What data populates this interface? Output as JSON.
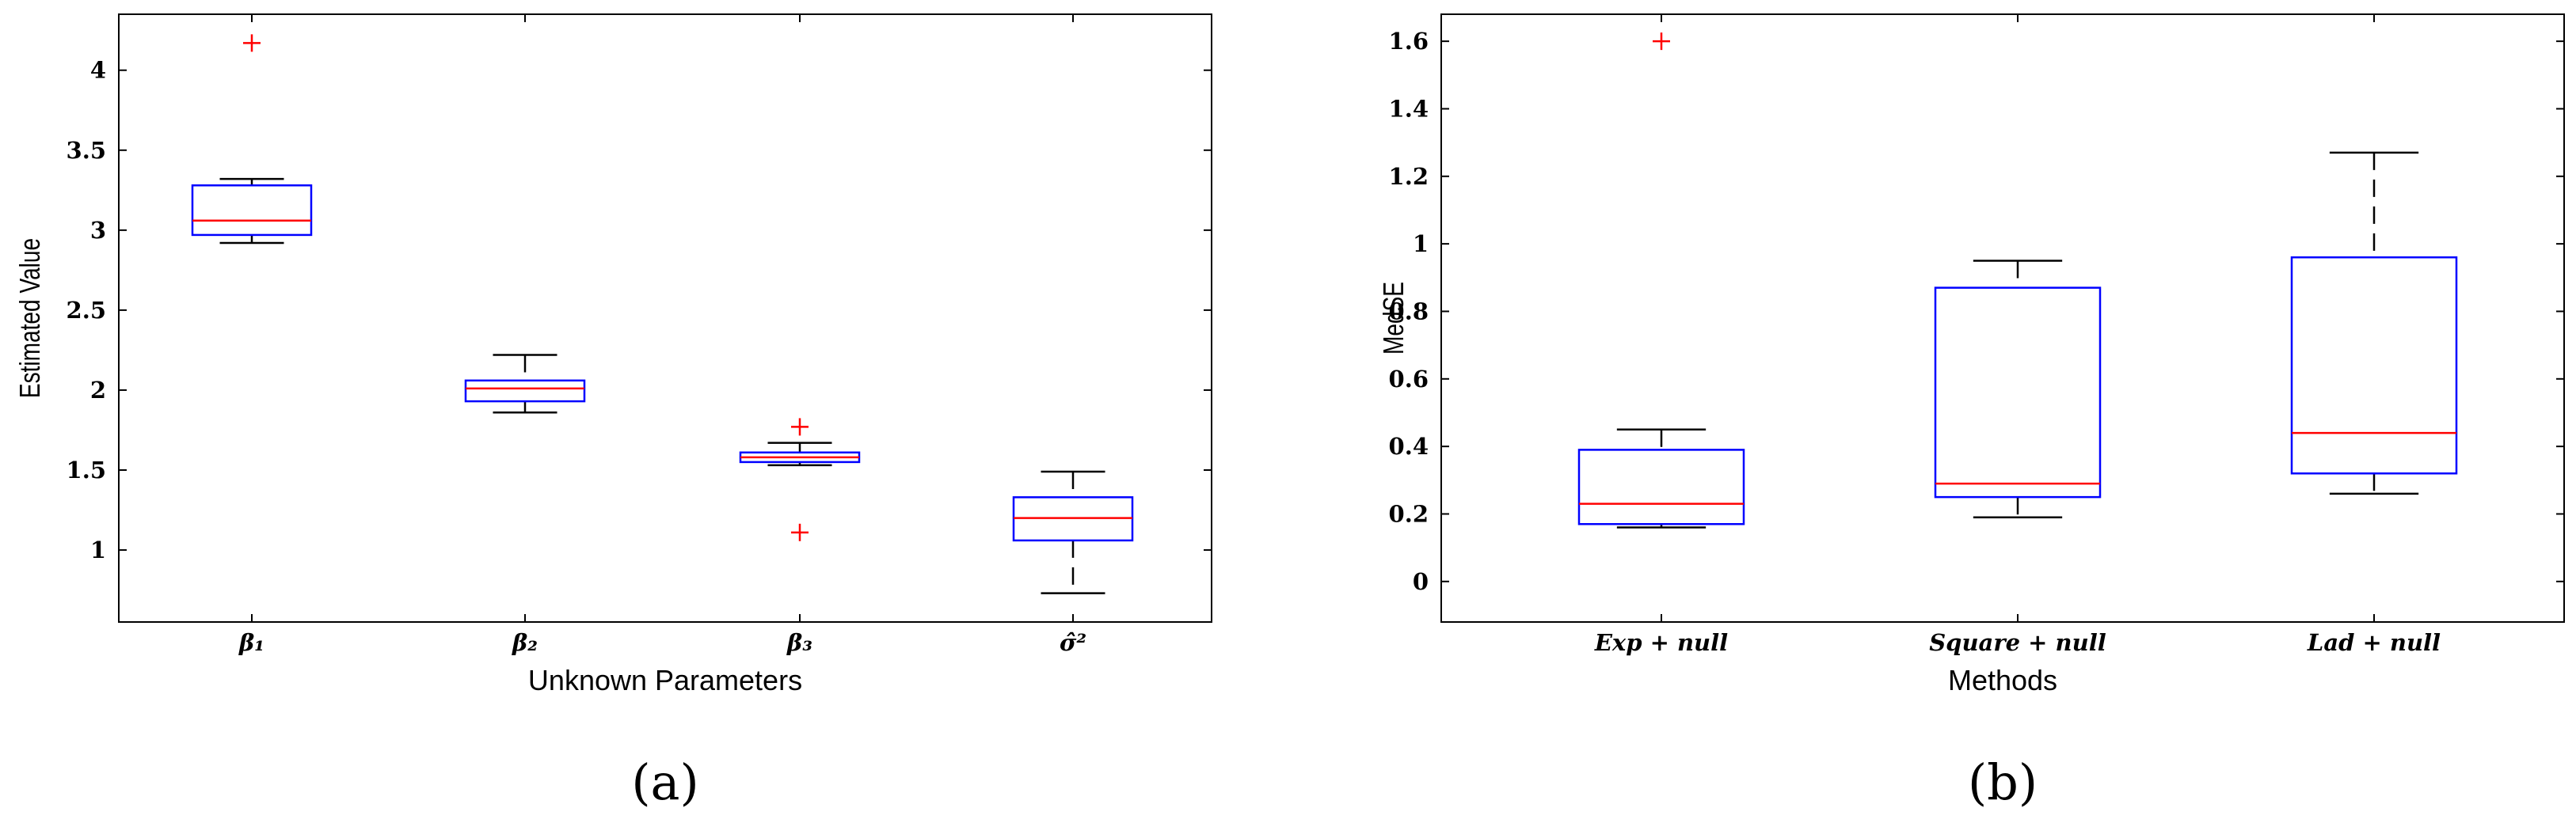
{
  "colors": {
    "box": "#0000ff",
    "median": "#ff0000",
    "outlier": "#ff0000",
    "whisker": "#000000",
    "axis": "#000000"
  },
  "panels": [
    {
      "label": "(a)"
    },
    {
      "label": "(b)"
    }
  ],
  "chart_data": [
    {
      "type": "box",
      "title": "",
      "xlabel": "Unknown Parameters",
      "ylabel": "Estimated Value",
      "ylim": [
        0.55,
        4.35
      ],
      "yticks": [
        1,
        1.5,
        2,
        2.5,
        3,
        3.5,
        4
      ],
      "ytick_labels": [
        "1",
        "1.5",
        "2",
        "2.5",
        "3",
        "3.5",
        "4"
      ],
      "grid": false,
      "categories": [
        "β₁",
        "β₂",
        "β₃",
        "σ̂²"
      ],
      "boxes": [
        {
          "category": "β₁",
          "whisker_low": 2.92,
          "q1": 2.97,
          "median": 3.06,
          "q3": 3.28,
          "whisker_high": 3.32,
          "outliers": [
            4.17
          ]
        },
        {
          "category": "β₂",
          "whisker_low": 1.86,
          "q1": 1.93,
          "median": 2.01,
          "q3": 2.06,
          "whisker_high": 2.22,
          "outliers": []
        },
        {
          "category": "β₃",
          "whisker_low": 1.53,
          "q1": 1.55,
          "median": 1.58,
          "q3": 1.61,
          "whisker_high": 1.67,
          "outliers": [
            1.77,
            1.11
          ]
        },
        {
          "category": "σ̂²",
          "whisker_low": 0.73,
          "q1": 1.06,
          "median": 1.2,
          "q3": 1.33,
          "whisker_high": 1.49,
          "outliers": []
        }
      ]
    },
    {
      "type": "box",
      "title": "",
      "xlabel": "Methods",
      "ylabel": "MedSE",
      "ylim": [
        -0.12,
        1.68
      ],
      "yticks": [
        0,
        0.2,
        0.4,
        0.6,
        0.8,
        1,
        1.2,
        1.4,
        1.6
      ],
      "ytick_labels": [
        "0",
        "0.2",
        "0.4",
        "0.6",
        "0.8",
        "1",
        "1.2",
        "1.4",
        "1.6"
      ],
      "grid": false,
      "categories": [
        "Exp + null",
        "Square + null",
        "Lad + null"
      ],
      "boxes": [
        {
          "category": "Exp + null",
          "whisker_low": 0.16,
          "q1": 0.17,
          "median": 0.23,
          "q3": 0.39,
          "whisker_high": 0.45,
          "outliers": [
            1.6
          ]
        },
        {
          "category": "Square + null",
          "whisker_low": 0.19,
          "q1": 0.25,
          "median": 0.29,
          "q3": 0.87,
          "whisker_high": 0.95,
          "outliers": []
        },
        {
          "category": "Lad + null",
          "whisker_low": 0.26,
          "q1": 0.32,
          "median": 0.44,
          "q3": 0.96,
          "whisker_high": 1.27,
          "outliers": []
        }
      ]
    }
  ]
}
